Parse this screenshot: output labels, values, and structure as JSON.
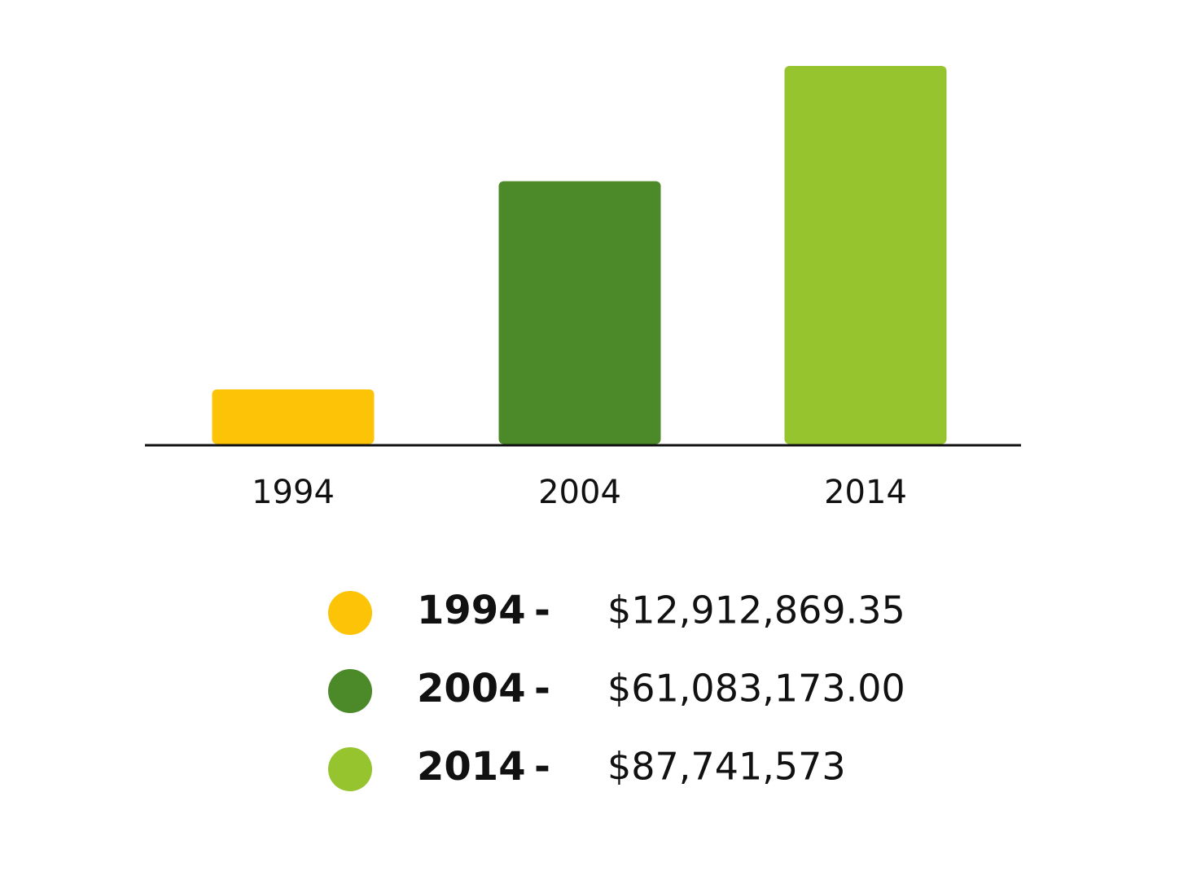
{
  "chart_data": {
    "type": "bar",
    "categories": [
      "1994",
      "2004",
      "2014"
    ],
    "values": [
      12912869.35,
      61083173.0,
      87741573
    ],
    "value_labels": [
      "$12,912,869.35",
      "$61,083,173.00",
      "$87,741,573"
    ],
    "colors": [
      "#fcc307",
      "#4c8a29",
      "#95c42f"
    ],
    "legend_separator": "-"
  }
}
